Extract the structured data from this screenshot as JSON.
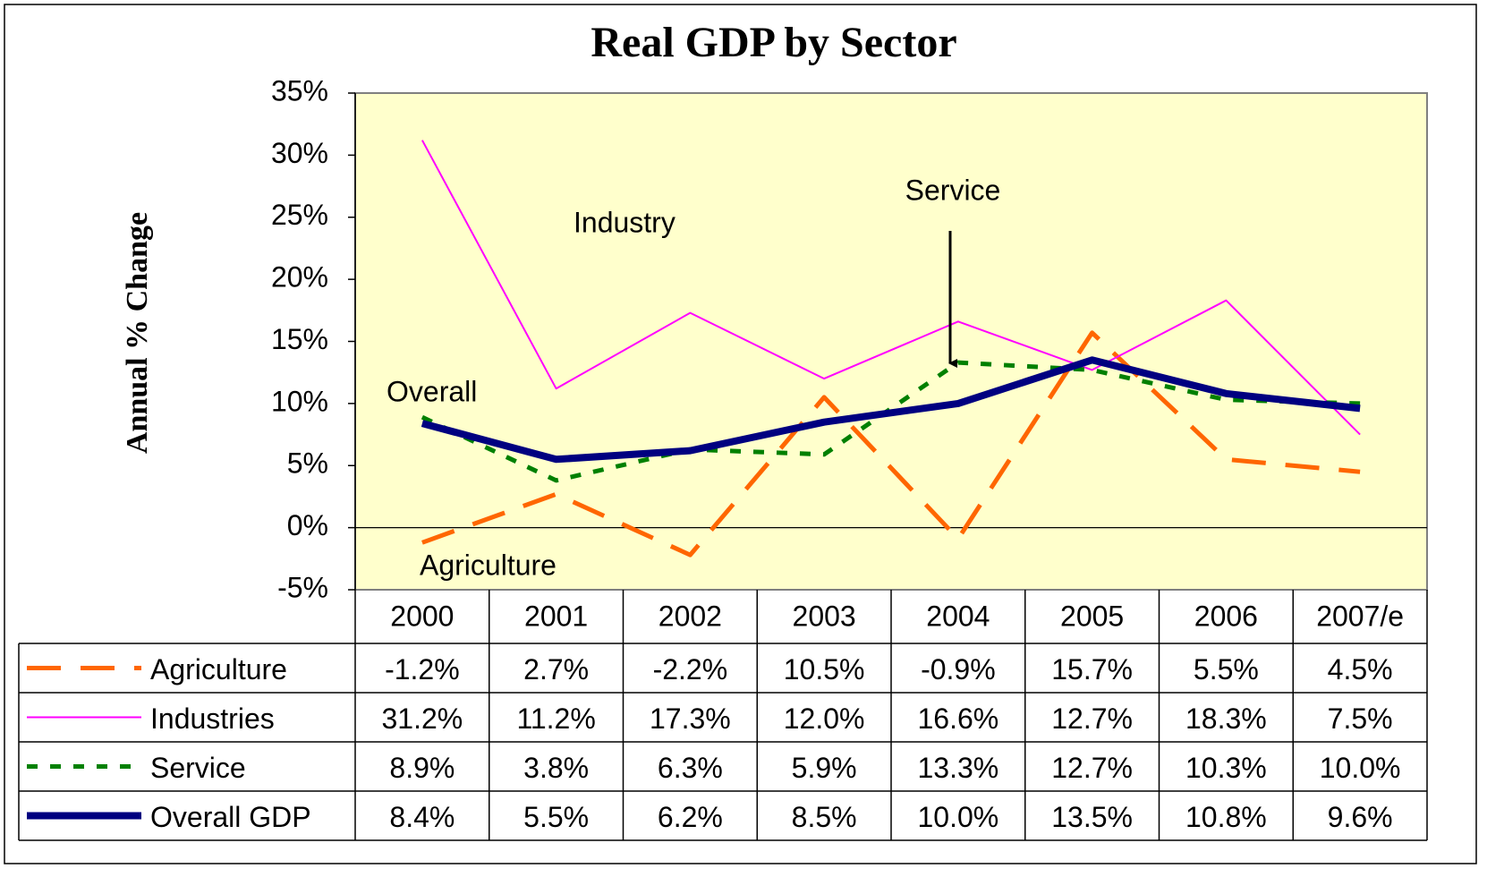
{
  "chart_data": {
    "type": "line",
    "title": "Real GDP by Sector",
    "y_label": "Annual % Change",
    "categories": [
      "2000",
      "2001",
      "2002",
      "2003",
      "2004",
      "2005",
      "2006",
      "2007/e"
    ],
    "ylim": [
      -5,
      35
    ],
    "yticks": [
      {
        "value": 35,
        "label": "35%"
      },
      {
        "value": 30,
        "label": "30%"
      },
      {
        "value": 25,
        "label": "25%"
      },
      {
        "value": 20,
        "label": "20%"
      },
      {
        "value": 15,
        "label": "15%"
      },
      {
        "value": 10,
        "label": "10%"
      },
      {
        "value": 5,
        "label": "5%"
      },
      {
        "value": 0,
        "label": "0%"
      },
      {
        "value": -5,
        "label": "-5%"
      }
    ],
    "plot_background": "#ffffcc",
    "series": [
      {
        "name": "Agriculture",
        "color": "#ff6600",
        "dash": "38 22",
        "width": 5,
        "values": [
          -1.2,
          2.7,
          -2.2,
          10.5,
          -0.9,
          15.7,
          5.5,
          4.5
        ],
        "value_labels": [
          "-1.2%",
          "2.7%",
          "-2.2%",
          "10.5%",
          "-0.9%",
          "15.7%",
          "5.5%",
          "4.5%"
        ]
      },
      {
        "name": "Industries",
        "color": "#ff00ff",
        "dash": "none",
        "width": 2,
        "values": [
          31.2,
          11.2,
          17.3,
          12.0,
          16.6,
          12.7,
          18.3,
          7.5
        ],
        "value_labels": [
          "31.2%",
          "11.2%",
          "17.3%",
          "12.0%",
          "16.6%",
          "12.7%",
          "18.3%",
          "7.5%"
        ]
      },
      {
        "name": "Service",
        "color": "#008000",
        "dash": "12 14",
        "width": 5,
        "values": [
          8.9,
          3.8,
          6.3,
          5.9,
          13.3,
          12.7,
          10.3,
          10.0
        ],
        "value_labels": [
          "8.9%",
          "3.8%",
          "6.3%",
          "5.9%",
          "13.3%",
          "12.7%",
          "10.3%",
          "10.0%"
        ]
      },
      {
        "name": "Overall GDP",
        "color": "#000080",
        "dash": "none",
        "width": 8,
        "values": [
          8.4,
          5.5,
          6.2,
          8.5,
          10.0,
          13.5,
          10.8,
          9.6
        ],
        "value_labels": [
          "8.4%",
          "5.5%",
          "6.2%",
          "8.5%",
          "10.0%",
          "13.5%",
          "10.8%",
          "9.6%"
        ]
      }
    ],
    "annotations": [
      "Industry",
      "Service",
      "Overall",
      "Agriculture"
    ]
  }
}
